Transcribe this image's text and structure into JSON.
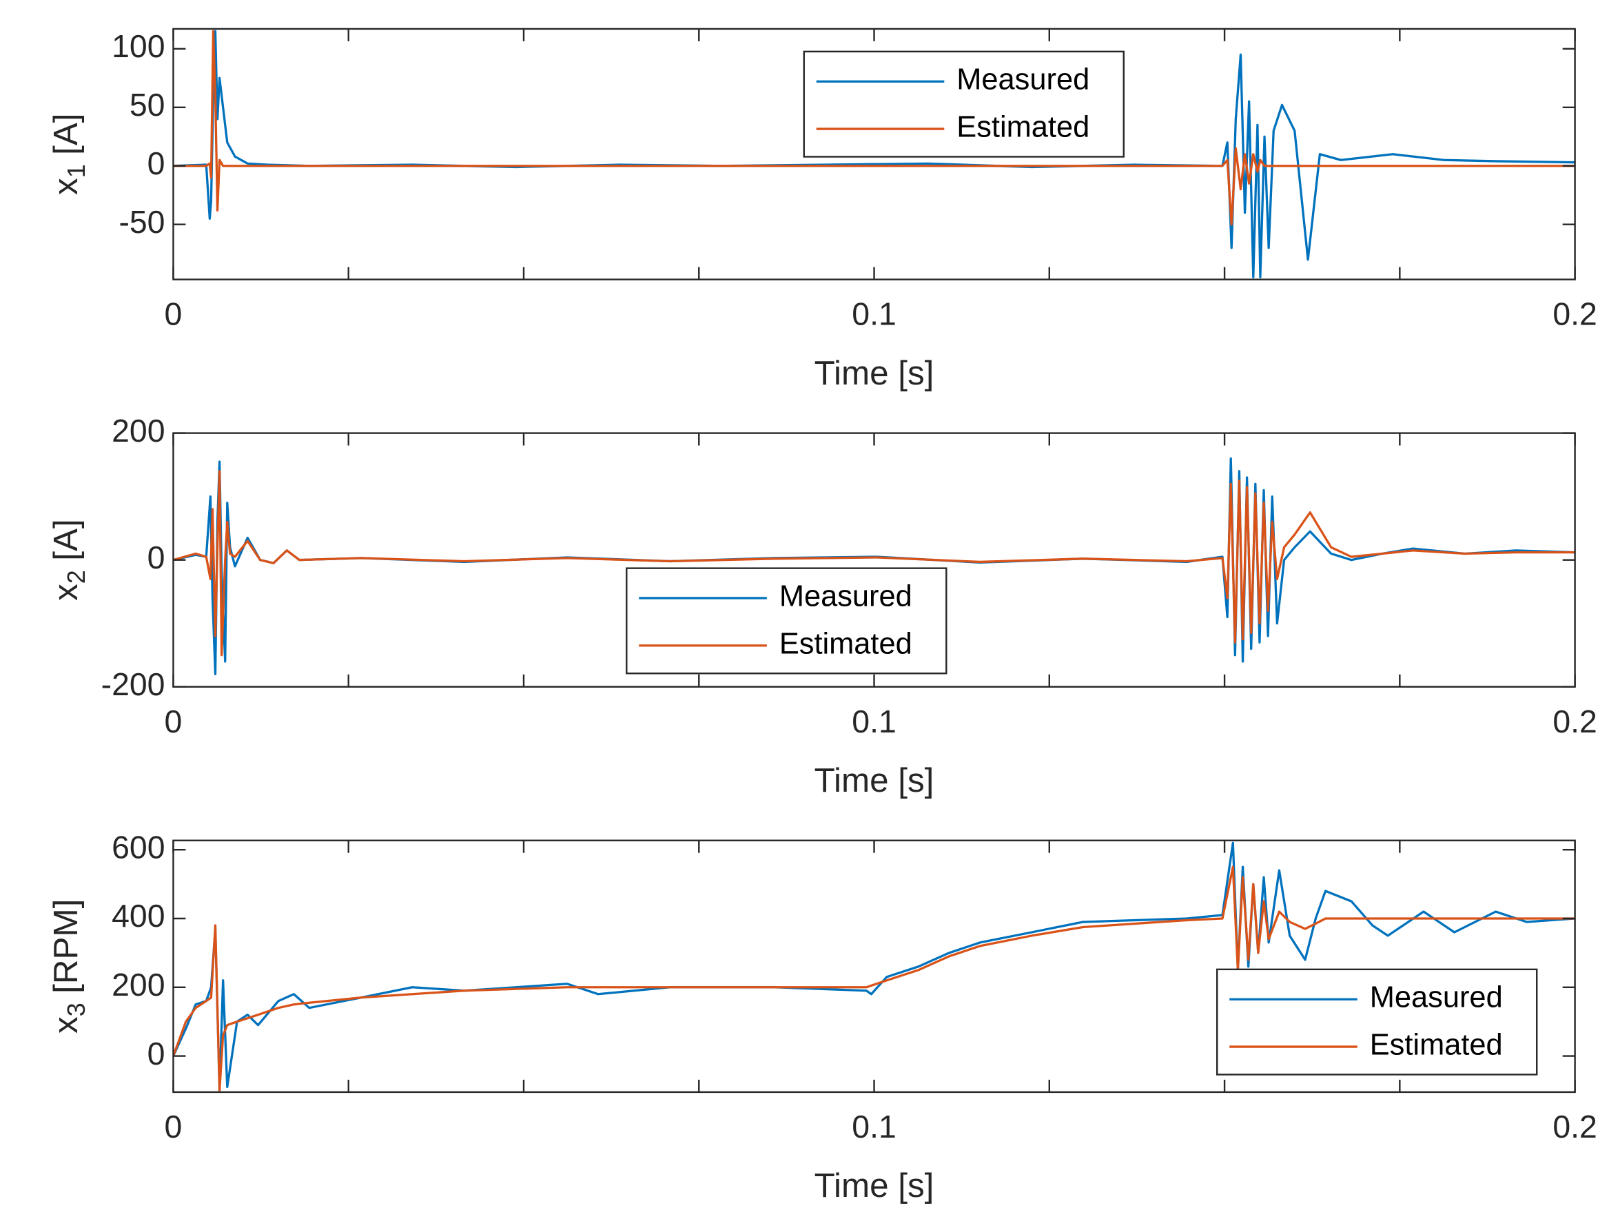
{
  "chart_data": [
    {
      "type": "line",
      "xlabel": "Time [s]",
      "ylabel_var": "x",
      "ylabel_sub": "1",
      "ylabel_unit": "[A]",
      "xlim": [
        0,
        0.2
      ],
      "xticks": [
        0,
        0.1,
        0.2
      ],
      "xminor_ticks": [
        0.025,
        0.05,
        0.075,
        0.125,
        0.15,
        0.175
      ],
      "ylim": [
        -97,
        117
      ],
      "yticks": [
        -50,
        0,
        50,
        100
      ],
      "legend_loc": "north",
      "x": [
        0,
        0.0047,
        0.0052,
        0.0054,
        0.0057,
        0.006,
        0.0063,
        0.0066,
        0.0071,
        0.0077,
        0.0088,
        0.0106,
        0.0135,
        0.0194,
        0.0341,
        0.0489,
        0.0636,
        0.0783,
        0.093,
        0.1077,
        0.1225,
        0.1372,
        0.1497,
        0.1504,
        0.151,
        0.1516,
        0.1523,
        0.1529,
        0.1535,
        0.1541,
        0.1547,
        0.1551,
        0.1557,
        0.1563,
        0.157,
        0.1582,
        0.16,
        0.1619,
        0.1636,
        0.1666,
        0.174,
        0.1813,
        0.1887,
        0.2
      ],
      "series": [
        {
          "name": "Measured",
          "color": "#0072BD",
          "values": [
            0,
            1,
            -45,
            -30,
            60,
            115,
            40,
            75,
            50,
            20,
            8,
            2,
            1,
            0,
            1,
            -1,
            1,
            0,
            1,
            2,
            -1,
            1,
            0,
            20,
            -70,
            40,
            95,
            -40,
            55,
            -95,
            35,
            -95,
            25,
            -70,
            30,
            52,
            30,
            -80,
            10,
            5,
            10,
            5,
            4,
            3
          ]
        },
        {
          "name": "Estimated",
          "color": "#D95319",
          "values": [
            0,
            0,
            2,
            -10,
            115,
            60,
            -38,
            5,
            0,
            0,
            0,
            0,
            0,
            0,
            0,
            0,
            0,
            0,
            0,
            0,
            0,
            0,
            0,
            5,
            -50,
            15,
            -20,
            10,
            -15,
            10,
            -5,
            5,
            0,
            0,
            0,
            0,
            0,
            0,
            0,
            0,
            0,
            0,
            0,
            0
          ]
        }
      ]
    },
    {
      "type": "line",
      "xlabel": "Time [s]",
      "ylabel_var": "x",
      "ylabel_sub": "2",
      "ylabel_unit": "[A]",
      "xlim": [
        0,
        0.2
      ],
      "xticks": [
        0,
        0.1,
        0.2
      ],
      "xminor_ticks": [
        0.025,
        0.05,
        0.075,
        0.125,
        0.15,
        0.175
      ],
      "ylim": [
        -200,
        200
      ],
      "yticks": [
        -200,
        0,
        200
      ],
      "legend_loc": "south",
      "x": [
        0,
        0.0032,
        0.0047,
        0.0053,
        0.0056,
        0.006,
        0.0063,
        0.0066,
        0.0069,
        0.0074,
        0.0077,
        0.0081,
        0.0088,
        0.0106,
        0.0124,
        0.0143,
        0.0162,
        0.018,
        0.0268,
        0.0415,
        0.0562,
        0.0709,
        0.0857,
        0.1004,
        0.1151,
        0.1298,
        0.1446,
        0.1497,
        0.1504,
        0.1509,
        0.1515,
        0.1521,
        0.1526,
        0.1532,
        0.1538,
        0.1544,
        0.155,
        0.1556,
        0.1562,
        0.1568,
        0.1575,
        0.1585,
        0.16,
        0.1622,
        0.1652,
        0.1681,
        0.1725,
        0.1769,
        0.1843,
        0.1916,
        0.2
      ],
      "series": [
        {
          "name": "Measured",
          "color": "#0072BD",
          "values": [
            0,
            8,
            5,
            100,
            -60,
            -180,
            60,
            155,
            -20,
            -160,
            90,
            20,
            -10,
            35,
            0,
            -5,
            15,
            0,
            3,
            -3,
            4,
            -2,
            3,
            5,
            -4,
            2,
            -3,
            5,
            -90,
            160,
            -150,
            140,
            -160,
            130,
            -140,
            120,
            -130,
            110,
            -120,
            100,
            -100,
            0,
            20,
            45,
            10,
            0,
            10,
            18,
            10,
            15,
            12
          ]
        },
        {
          "name": "Estimated",
          "color": "#D95319",
          "values": [
            0,
            10,
            5,
            -30,
            80,
            -120,
            20,
            140,
            -150,
            0,
            60,
            10,
            5,
            30,
            0,
            -5,
            15,
            0,
            3,
            -2,
            3,
            -2,
            2,
            4,
            -3,
            2,
            -2,
            3,
            -60,
            120,
            -130,
            125,
            -125,
            115,
            -115,
            105,
            -100,
            90,
            -80,
            60,
            -30,
            20,
            40,
            75,
            20,
            5,
            10,
            15,
            10,
            12,
            12
          ]
        }
      ]
    },
    {
      "type": "line",
      "xlabel": "Time [s]",
      "ylabel_var": "x",
      "ylabel_sub": "3",
      "ylabel_unit": "[RPM]",
      "xlim": [
        0,
        0.2
      ],
      "xticks": [
        0,
        0.1,
        0.2
      ],
      "xminor_ticks": [
        0.025,
        0.05,
        0.075,
        0.125,
        0.15,
        0.175
      ],
      "ylim": [
        -105,
        627
      ],
      "yticks": [
        0,
        200,
        400,
        600
      ],
      "legend_loc": "southeast",
      "x": [
        0,
        0.0018,
        0.0032,
        0.0047,
        0.0054,
        0.006,
        0.0066,
        0.0071,
        0.0077,
        0.0091,
        0.0106,
        0.0121,
        0.015,
        0.0172,
        0.0194,
        0.0268,
        0.0341,
        0.0415,
        0.0489,
        0.0562,
        0.0606,
        0.0709,
        0.0857,
        0.0989,
        0.0996,
        0.1018,
        0.1063,
        0.1107,
        0.1151,
        0.1225,
        0.1298,
        0.1372,
        0.1446,
        0.1497,
        0.1512,
        0.1519,
        0.1526,
        0.1534,
        0.1541,
        0.1548,
        0.1556,
        0.1563,
        0.1578,
        0.1593,
        0.1615,
        0.163,
        0.1644,
        0.1681,
        0.1711,
        0.1733,
        0.1784,
        0.1828,
        0.1887,
        0.1931,
        0.2
      ],
      "series": [
        {
          "name": "Measured",
          "color": "#0072BD",
          "values": [
            0,
            80,
            150,
            160,
            200,
            370,
            -100,
            220,
            -90,
            100,
            120,
            90,
            160,
            180,
            140,
            170,
            200,
            190,
            200,
            210,
            180,
            200,
            200,
            190,
            180,
            230,
            260,
            300,
            330,
            360,
            390,
            395,
            400,
            410,
            620,
            250,
            550,
            260,
            500,
            300,
            520,
            330,
            540,
            350,
            280,
            400,
            480,
            450,
            380,
            350,
            420,
            360,
            420,
            390,
            400
          ]
        },
        {
          "name": "Estimated",
          "color": "#D95319",
          "values": [
            0,
            100,
            140,
            160,
            170,
            380,
            -100,
            60,
            90,
            100,
            110,
            120,
            140,
            150,
            155,
            170,
            180,
            190,
            195,
            200,
            200,
            200,
            200,
            200,
            205,
            220,
            250,
            290,
            320,
            350,
            375,
            385,
            395,
            400,
            550,
            250,
            520,
            280,
            500,
            300,
            450,
            340,
            420,
            390,
            370,
            385,
            400,
            400,
            400,
            400,
            400,
            400,
            400,
            400,
            400
          ]
        }
      ]
    }
  ]
}
